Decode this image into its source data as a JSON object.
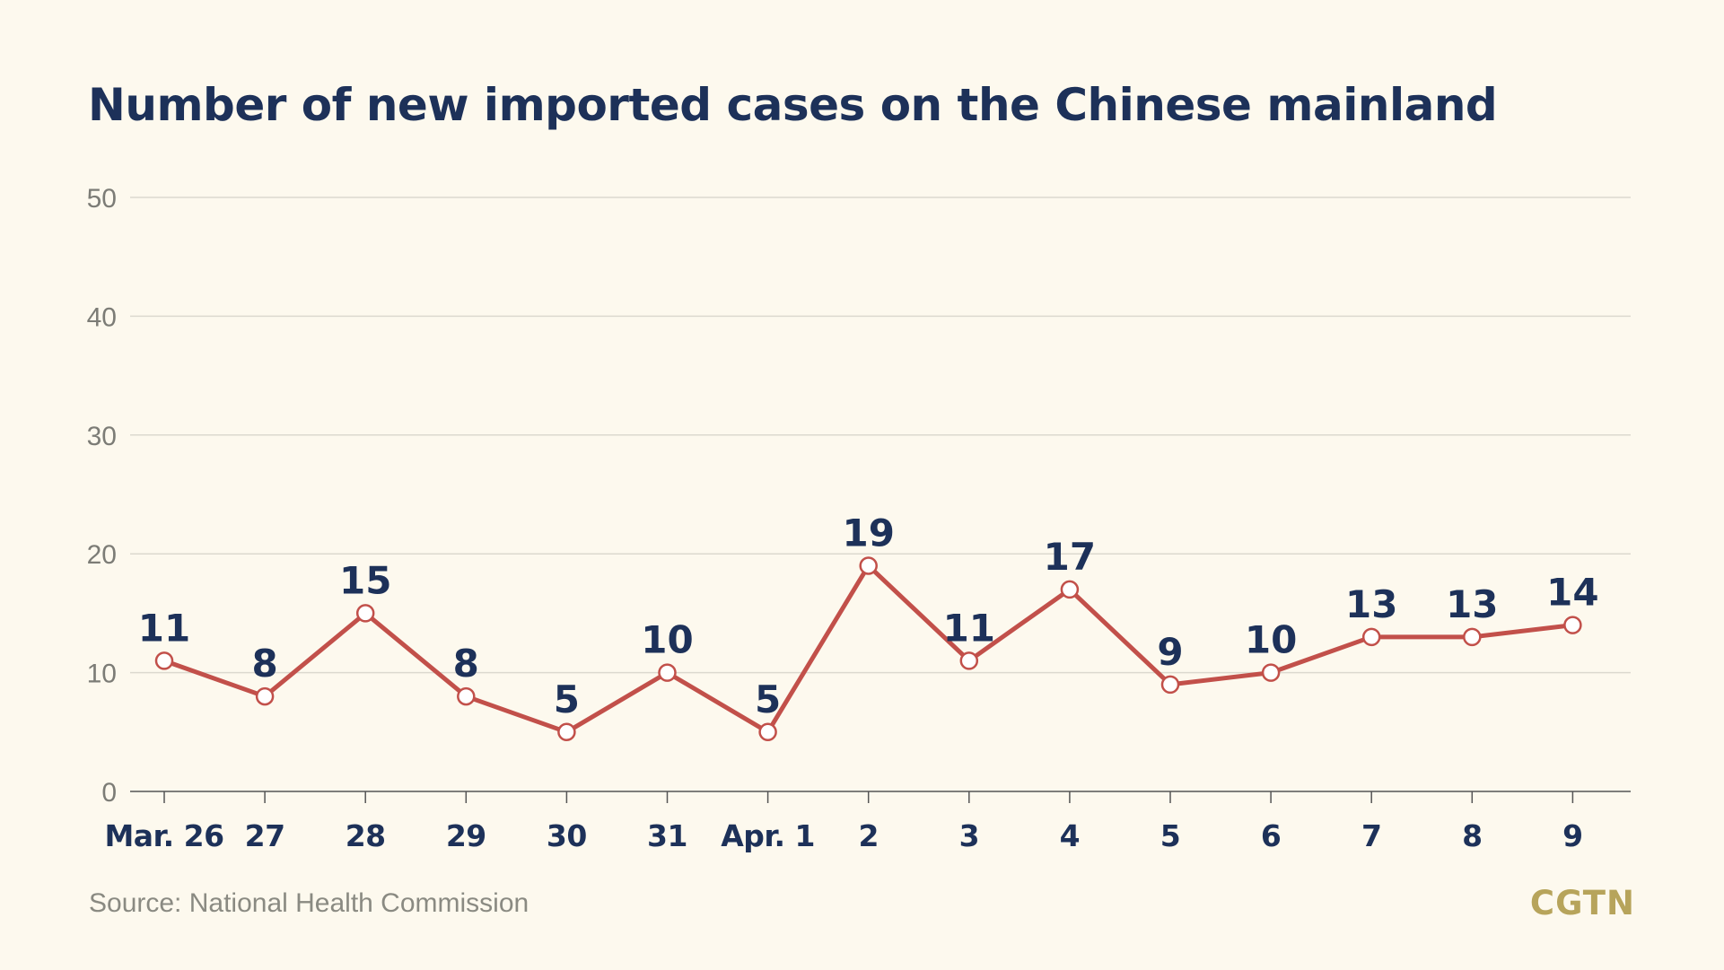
{
  "title": "Number of new imported cases on the Chinese mainland",
  "source": "Source: National Health Commission",
  "logo": "CGTN",
  "colors": {
    "background": "#fdf9ee",
    "title": "#1d3159",
    "line": "#c2504a",
    "marker_fill": "#ffffff",
    "gridline": "#dcd9cf",
    "axis_tick_label": "#7c7c76",
    "logo": "#b7a45b"
  },
  "chart_data": {
    "type": "line",
    "title": "Number of new imported cases on the Chinese mainland",
    "xlabel": "",
    "ylabel": "",
    "categories": [
      "Mar. 26",
      "27",
      "28",
      "29",
      "30",
      "31",
      "Apr. 1",
      "2",
      "3",
      "4",
      "5",
      "6",
      "7",
      "8",
      "9"
    ],
    "series": [
      {
        "values": [
          11,
          8,
          15,
          8,
          5,
          10,
          5,
          19,
          11,
          17,
          9,
          10,
          13,
          13,
          14
        ]
      }
    ],
    "ylim": [
      0,
      50
    ],
    "yticks": [
      0,
      10,
      20,
      30,
      40,
      50
    ],
    "grid": true,
    "data_labels": true,
    "legend": "none"
  }
}
